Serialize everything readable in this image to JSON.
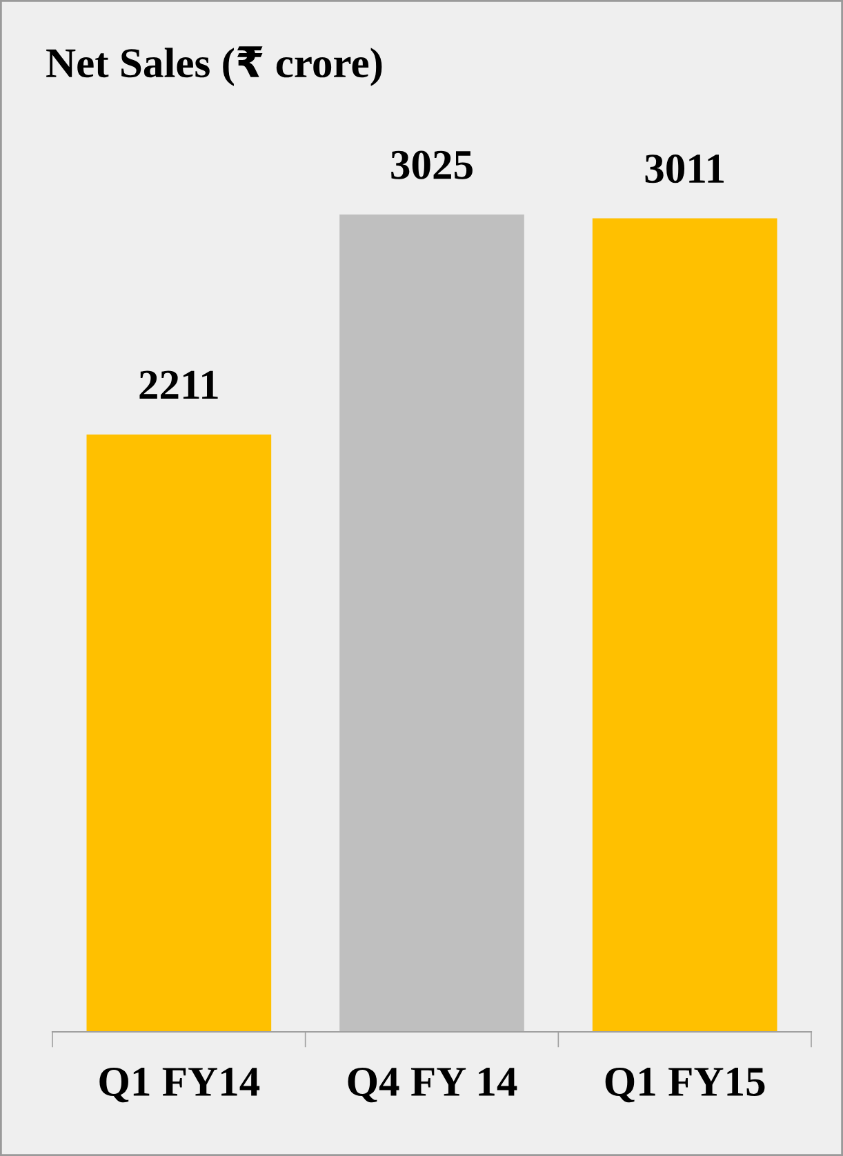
{
  "chart_data": {
    "type": "bar",
    "title": "Net Sales (₹ crore)",
    "categories": [
      "Q1 FY14",
      "Q4 FY 14",
      "Q1 FY15"
    ],
    "values": [
      2211,
      3025,
      3011
    ],
    "colors": [
      "#ffc000",
      "#bfbfbf",
      "#ffc000"
    ],
    "data_labels": true,
    "grid": false,
    "legend": false
  }
}
